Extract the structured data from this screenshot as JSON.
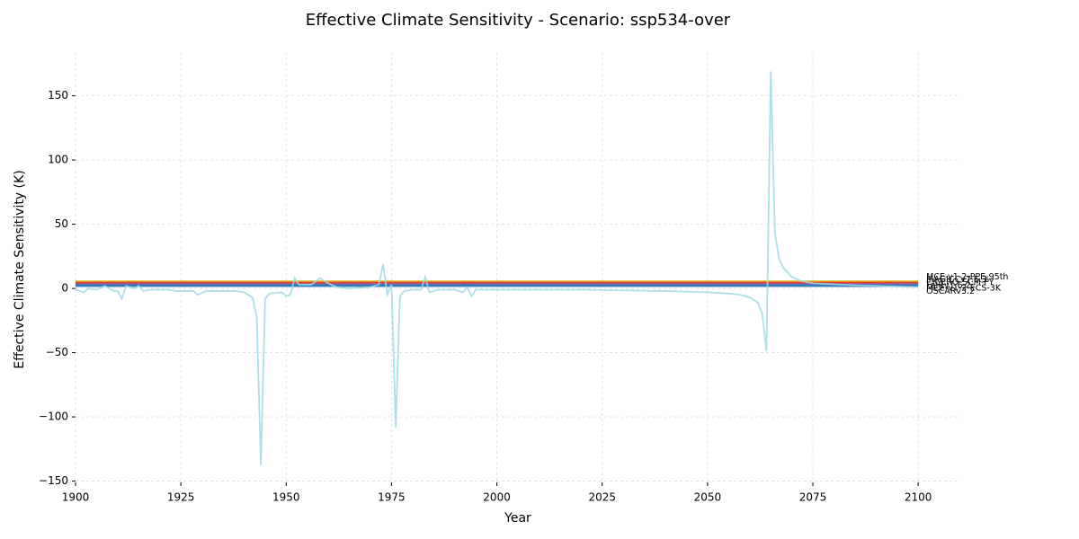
{
  "chart_data": {
    "type": "line",
    "title": "Effective Climate Sensitivity - Scenario: ssp534-over",
    "xlabel": "Year",
    "ylabel": "Effective Climate Sensitivity (K)",
    "xlim": [
      1900,
      2110
    ],
    "ylim": [
      -151,
      184
    ],
    "xticks": [
      1900,
      1925,
      1950,
      1975,
      2000,
      2025,
      2050,
      2075,
      2100
    ],
    "yticks": [
      {
        "value": -150,
        "label": "−150"
      },
      {
        "value": -100,
        "label": "−100"
      },
      {
        "value": -50,
        "label": "−50"
      },
      0,
      50,
      100,
      150
    ],
    "grid": true,
    "series": [
      {
        "name": "MCE-v1-2-PPE-95th",
        "color": "#bcbd22",
        "x": [
          1900,
          2100
        ],
        "values": [
          5.2,
          5.2
        ]
      },
      {
        "name": "MAGICCv7.5.3",
        "color": "#ff7f0e",
        "x": [
          1900,
          2100
        ],
        "values": [
          4.6,
          4.6
        ]
      },
      {
        "name": "CICERO-SCM-PY",
        "color": "#d62728",
        "x": [
          1900,
          2100
        ],
        "values": [
          3.8,
          3.8
        ]
      },
      {
        "name": "FaIRv1.6.2",
        "color": "#9467bd",
        "x": [
          1900,
          2100
        ],
        "values": [
          3.0,
          3.0
        ]
      },
      {
        "name": "MCE-v1-2-ECS-3K",
        "color": "#1f77b4",
        "x": [
          1900,
          2100
        ],
        "values": [
          2.2,
          2.2
        ]
      },
      {
        "name": "OSCARv3.2",
        "color": "#9edae5",
        "x": [
          1900,
          1902,
          1903,
          1905,
          1907,
          1909,
          1910,
          1911,
          1912,
          1914,
          1915,
          1916,
          1918,
          1922,
          1924,
          1928,
          1929,
          1931,
          1938,
          1940,
          1942,
          1943,
          1944,
          1945,
          1946,
          1949,
          1950,
          1951,
          1952,
          1953,
          1956,
          1958,
          1960,
          1962,
          1965,
          1970,
          1972,
          1973,
          1974,
          1975,
          1976,
          1977,
          1978,
          1980,
          1982,
          1983,
          1984,
          1986,
          1990,
          1992,
          1993,
          1994,
          1995,
          2000,
          2020,
          2040,
          2050,
          2055,
          2058,
          2060,
          2062,
          2063,
          2064,
          2065,
          2066,
          2067,
          2068,
          2070,
          2072,
          2075,
          2085,
          2100
        ],
        "values": [
          -1,
          -3,
          0,
          -1,
          2,
          -2,
          -2,
          -8,
          2,
          0,
          2,
          -2,
          -1,
          -1,
          -2,
          -2,
          -5,
          -2,
          -2,
          -3,
          -7,
          -22,
          -138,
          -8,
          -4,
          -3,
          -6,
          -5,
          8,
          3,
          3,
          8,
          4,
          1,
          0,
          1,
          3,
          19,
          -5,
          3,
          -108,
          -6,
          -2,
          -1,
          -1,
          9,
          -3,
          -1,
          -1,
          -3,
          1,
          -6,
          -1,
          -1,
          -1,
          -2,
          -3,
          -4,
          -5,
          -7,
          -11,
          -20,
          -49,
          169,
          43,
          23,
          16,
          9,
          6,
          4,
          2.5,
          1
        ]
      }
    ]
  }
}
